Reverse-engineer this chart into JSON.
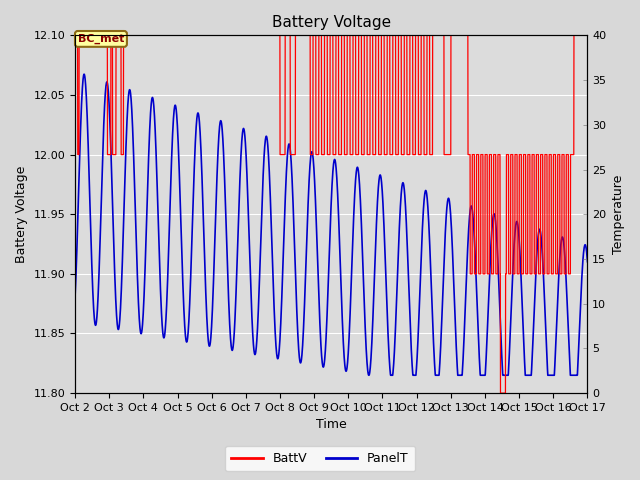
{
  "title": "Battery Voltage",
  "xlabel": "Time",
  "ylabel_left": "Battery Voltage",
  "ylabel_right": "Temperature",
  "ylim_left": [
    11.8,
    12.1
  ],
  "ylim_right": [
    0,
    40
  ],
  "xlim": [
    0,
    15
  ],
  "xtick_labels": [
    "Oct 2",
    "Oct 3",
    "Oct 4",
    "Oct 5",
    "Oct 6",
    "Oct 7",
    "Oct 8",
    "Oct 9",
    "Oct 10",
    "Oct 11",
    "Oct 12",
    "Oct 13",
    "Oct 14",
    "Oct 15",
    "Oct 16",
    "Oct 17"
  ],
  "bg_color": "#d8d8d8",
  "plot_bg_color": "#e8e8e8",
  "inner_bg_color": "#dcdcdc",
  "annotation_text": "BC_met",
  "battv_color": "#ff0000",
  "panelt_color": "#0000cc",
  "legend_battv": "BattV",
  "legend_panelt": "PanelT",
  "yticks_left": [
    11.8,
    11.85,
    11.9,
    11.95,
    12.0,
    12.05,
    12.1
  ],
  "yticks_right": [
    0,
    5,
    10,
    15,
    20,
    25,
    30,
    35,
    40
  ]
}
